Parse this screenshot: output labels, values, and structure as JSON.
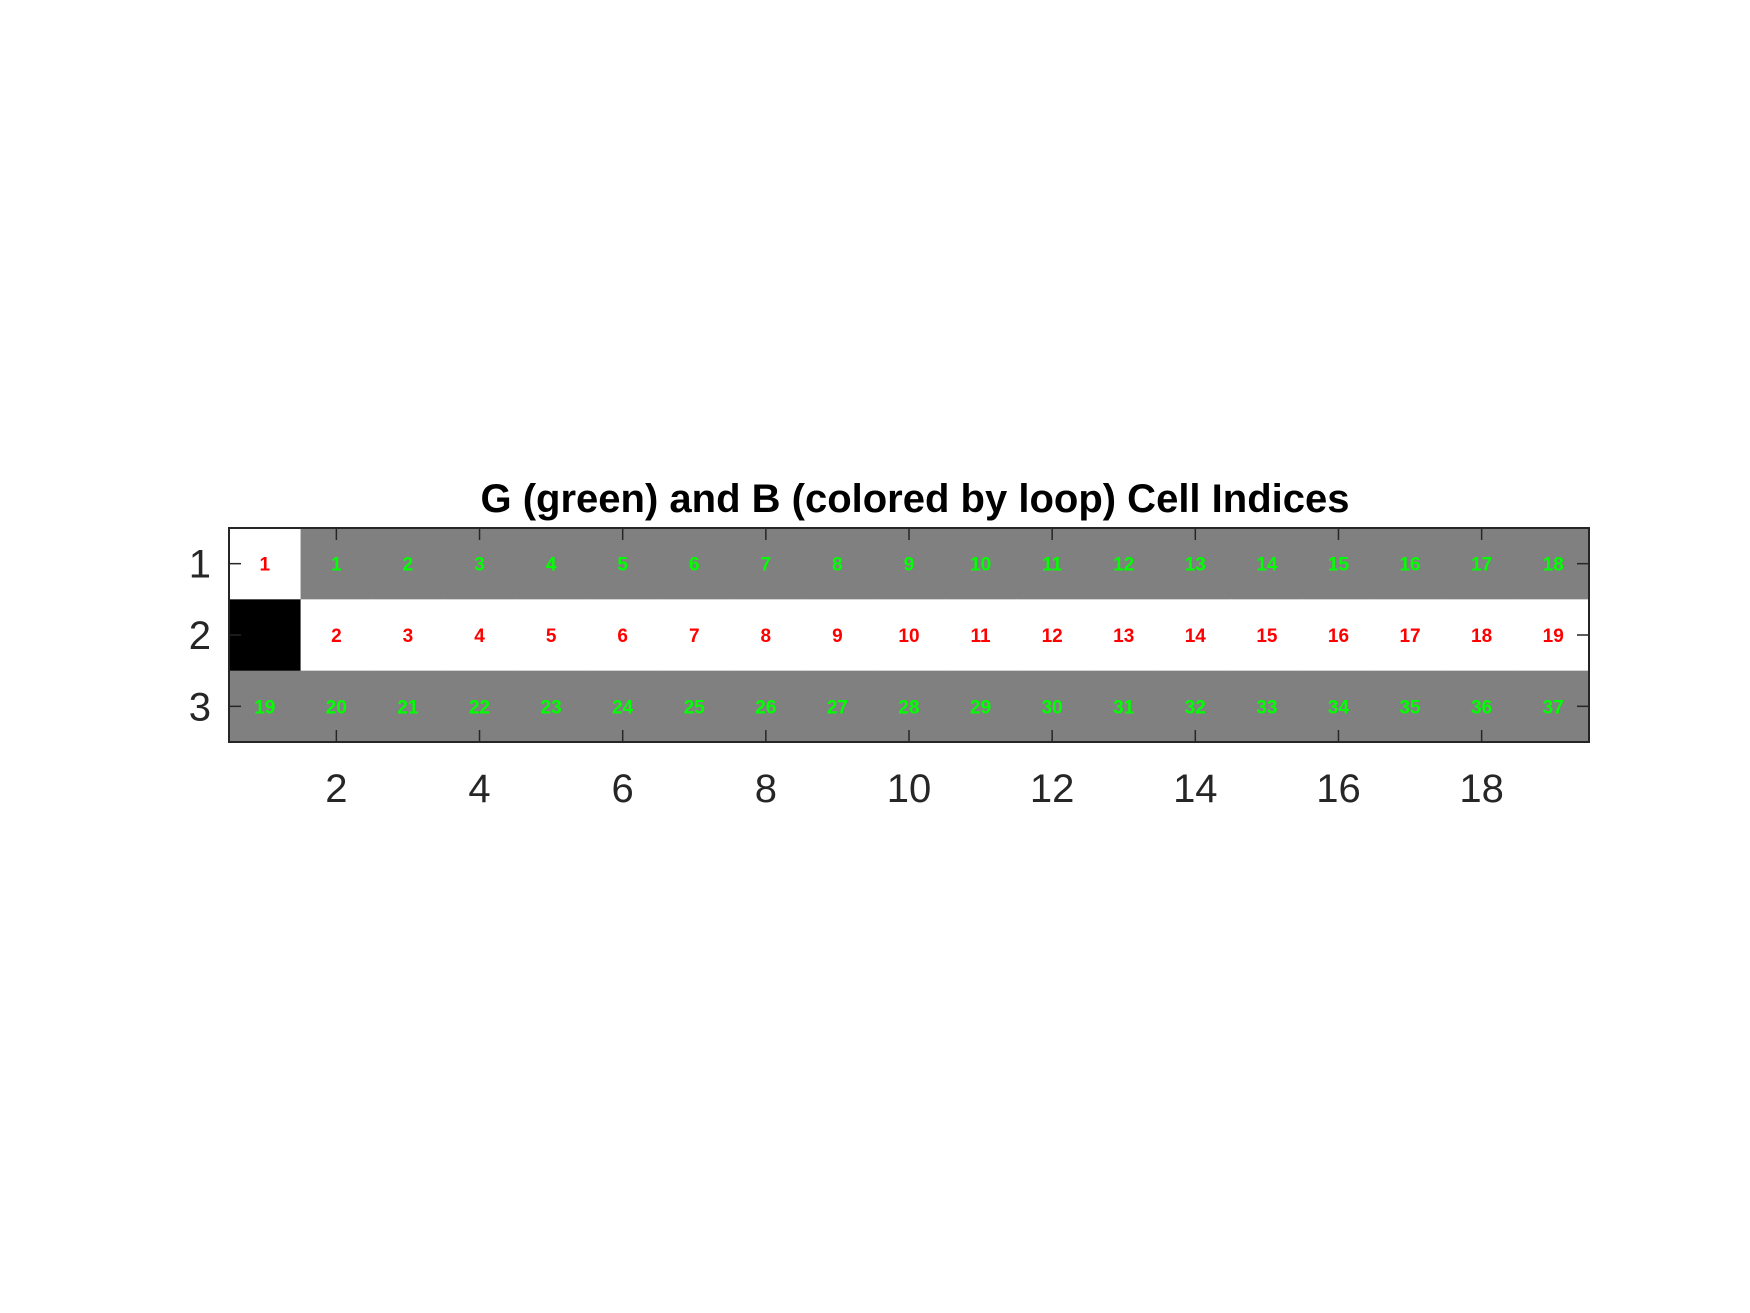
{
  "chart_data": {
    "type": "heatmap",
    "title": "G (green) and B (colored by loop) Cell Indices",
    "xlabel": "",
    "ylabel": "",
    "n_cols": 19,
    "n_rows": 3,
    "xlim": [
      0.5,
      19.5
    ],
    "ylim": [
      0.5,
      3.5
    ],
    "x_ticks": [
      2,
      4,
      6,
      8,
      10,
      12,
      14,
      16,
      18
    ],
    "x_tick_labels": [
      "2",
      "4",
      "6",
      "8",
      "10",
      "12",
      "14",
      "16",
      "18"
    ],
    "y_ticks": [
      1,
      2,
      3
    ],
    "y_tick_labels": [
      "1",
      "2",
      "3"
    ],
    "grid": false,
    "colors": {
      "gray": "#808080",
      "white": "#ffffff",
      "black": "#000000",
      "green_label": "#00ff00",
      "red_label": "#ff0000"
    },
    "cell_colors": [
      [
        "white",
        "gray",
        "gray",
        "gray",
        "gray",
        "gray",
        "gray",
        "gray",
        "gray",
        "gray",
        "gray",
        "gray",
        "gray",
        "gray",
        "gray",
        "gray",
        "gray",
        "gray",
        "gray"
      ],
      [
        "black",
        "white",
        "white",
        "white",
        "white",
        "white",
        "white",
        "white",
        "white",
        "white",
        "white",
        "white",
        "white",
        "white",
        "white",
        "white",
        "white",
        "white",
        "white"
      ],
      [
        "gray",
        "gray",
        "gray",
        "gray",
        "gray",
        "gray",
        "gray",
        "gray",
        "gray",
        "gray",
        "gray",
        "gray",
        "gray",
        "gray",
        "gray",
        "gray",
        "gray",
        "gray",
        "gray"
      ]
    ],
    "cell_labels": [
      {
        "row": 1,
        "col": 1,
        "text": "1",
        "color": "red"
      },
      {
        "row": 1,
        "col": 2,
        "text": "1",
        "color": "green"
      },
      {
        "row": 1,
        "col": 3,
        "text": "2",
        "color": "green"
      },
      {
        "row": 1,
        "col": 4,
        "text": "3",
        "color": "green"
      },
      {
        "row": 1,
        "col": 5,
        "text": "4",
        "color": "green"
      },
      {
        "row": 1,
        "col": 6,
        "text": "5",
        "color": "green"
      },
      {
        "row": 1,
        "col": 7,
        "text": "6",
        "color": "green"
      },
      {
        "row": 1,
        "col": 8,
        "text": "7",
        "color": "green"
      },
      {
        "row": 1,
        "col": 9,
        "text": "8",
        "color": "green"
      },
      {
        "row": 1,
        "col": 10,
        "text": "9",
        "color": "green"
      },
      {
        "row": 1,
        "col": 11,
        "text": "10",
        "color": "green"
      },
      {
        "row": 1,
        "col": 12,
        "text": "11",
        "color": "green"
      },
      {
        "row": 1,
        "col": 13,
        "text": "12",
        "color": "green"
      },
      {
        "row": 1,
        "col": 14,
        "text": "13",
        "color": "green"
      },
      {
        "row": 1,
        "col": 15,
        "text": "14",
        "color": "green"
      },
      {
        "row": 1,
        "col": 16,
        "text": "15",
        "color": "green"
      },
      {
        "row": 1,
        "col": 17,
        "text": "16",
        "color": "green"
      },
      {
        "row": 1,
        "col": 18,
        "text": "17",
        "color": "green"
      },
      {
        "row": 1,
        "col": 19,
        "text": "18",
        "color": "green"
      },
      {
        "row": 2,
        "col": 2,
        "text": "2",
        "color": "red"
      },
      {
        "row": 2,
        "col": 3,
        "text": "3",
        "color": "red"
      },
      {
        "row": 2,
        "col": 4,
        "text": "4",
        "color": "red"
      },
      {
        "row": 2,
        "col": 5,
        "text": "5",
        "color": "red"
      },
      {
        "row": 2,
        "col": 6,
        "text": "6",
        "color": "red"
      },
      {
        "row": 2,
        "col": 7,
        "text": "7",
        "color": "red"
      },
      {
        "row": 2,
        "col": 8,
        "text": "8",
        "color": "red"
      },
      {
        "row": 2,
        "col": 9,
        "text": "9",
        "color": "red"
      },
      {
        "row": 2,
        "col": 10,
        "text": "10",
        "color": "red"
      },
      {
        "row": 2,
        "col": 11,
        "text": "11",
        "color": "red"
      },
      {
        "row": 2,
        "col": 12,
        "text": "12",
        "color": "red"
      },
      {
        "row": 2,
        "col": 13,
        "text": "13",
        "color": "red"
      },
      {
        "row": 2,
        "col": 14,
        "text": "14",
        "color": "red"
      },
      {
        "row": 2,
        "col": 15,
        "text": "15",
        "color": "red"
      },
      {
        "row": 2,
        "col": 16,
        "text": "16",
        "color": "red"
      },
      {
        "row": 2,
        "col": 17,
        "text": "17",
        "color": "red"
      },
      {
        "row": 2,
        "col": 18,
        "text": "18",
        "color": "red"
      },
      {
        "row": 2,
        "col": 19,
        "text": "19",
        "color": "red"
      },
      {
        "row": 3,
        "col": 1,
        "text": "19",
        "color": "green"
      },
      {
        "row": 3,
        "col": 2,
        "text": "20",
        "color": "green"
      },
      {
        "row": 3,
        "col": 3,
        "text": "21",
        "color": "green"
      },
      {
        "row": 3,
        "col": 4,
        "text": "22",
        "color": "green"
      },
      {
        "row": 3,
        "col": 5,
        "text": "23",
        "color": "green"
      },
      {
        "row": 3,
        "col": 6,
        "text": "24",
        "color": "green"
      },
      {
        "row": 3,
        "col": 7,
        "text": "25",
        "color": "green"
      },
      {
        "row": 3,
        "col": 8,
        "text": "26",
        "color": "green"
      },
      {
        "row": 3,
        "col": 9,
        "text": "27",
        "color": "green"
      },
      {
        "row": 3,
        "col": 10,
        "text": "28",
        "color": "green"
      },
      {
        "row": 3,
        "col": 11,
        "text": "29",
        "color": "green"
      },
      {
        "row": 3,
        "col": 12,
        "text": "30",
        "color": "green"
      },
      {
        "row": 3,
        "col": 13,
        "text": "31",
        "color": "green"
      },
      {
        "row": 3,
        "col": 14,
        "text": "32",
        "color": "green"
      },
      {
        "row": 3,
        "col": 15,
        "text": "33",
        "color": "green"
      },
      {
        "row": 3,
        "col": 16,
        "text": "34",
        "color": "green"
      },
      {
        "row": 3,
        "col": 17,
        "text": "35",
        "color": "green"
      },
      {
        "row": 3,
        "col": 18,
        "text": "36",
        "color": "green"
      },
      {
        "row": 3,
        "col": 19,
        "text": "37",
        "color": "green"
      }
    ]
  }
}
